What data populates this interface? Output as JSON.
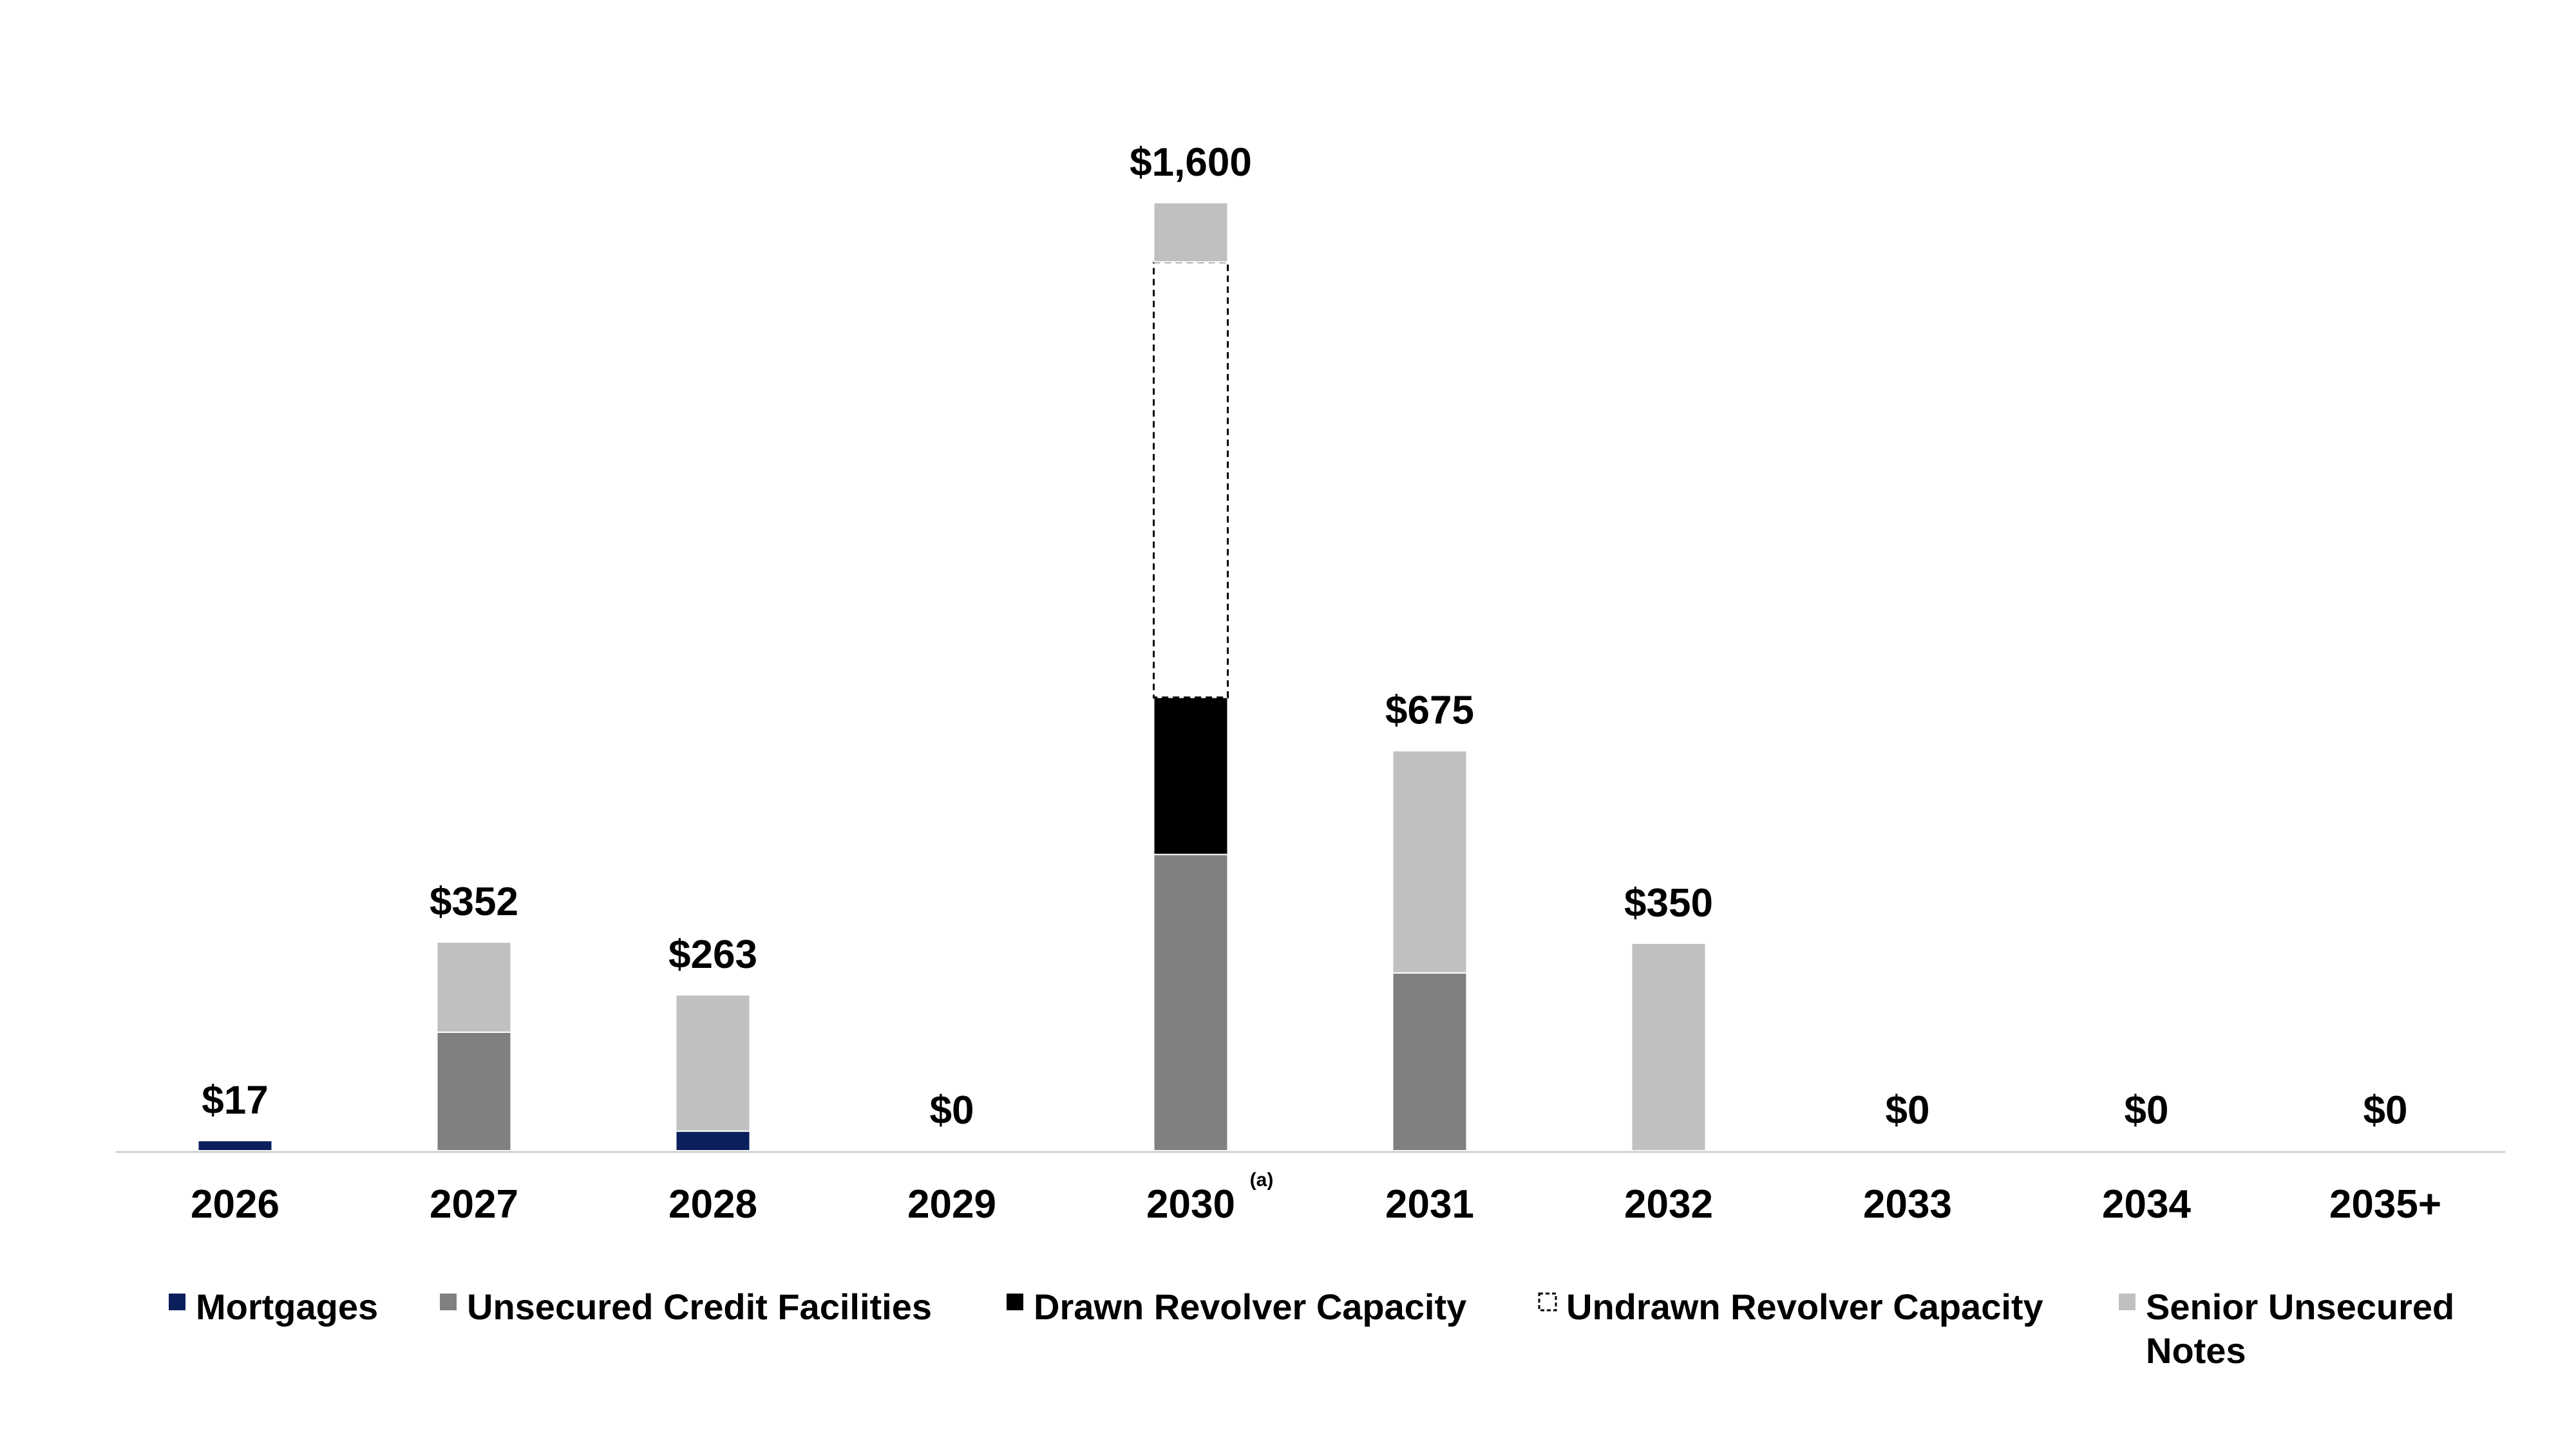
{
  "chart_data": {
    "type": "bar",
    "stacked": true,
    "title": "",
    "xlabel": "",
    "ylabel": "",
    "ylim": [
      0,
      1600
    ],
    "grid": false,
    "legend_position": "bottom",
    "categories": [
      "2026",
      "2027",
      "2028",
      "2029",
      "2030",
      "2031",
      "2032",
      "2033",
      "2034",
      "2035+"
    ],
    "category_notes": {
      "2030": "(a)"
    },
    "totals": [
      "$17",
      "$352",
      "$263",
      "$0",
      "$1,600",
      "$675",
      "$350",
      "$0",
      "$0",
      "$0"
    ],
    "series": [
      {
        "name": "Mortgages",
        "color": "#0b1f5c",
        "style": "solid",
        "values": [
          17,
          0,
          33,
          0,
          0,
          0,
          0,
          0,
          0,
          0
        ]
      },
      {
        "name": "Unsecured Credit Facilities",
        "color": "#808080",
        "style": "solid",
        "values": [
          0,
          200,
          0,
          0,
          500,
          300,
          0,
          0,
          0,
          0
        ]
      },
      {
        "name": "Drawn Revolver Capacity",
        "color": "#000000",
        "style": "solid",
        "values": [
          0,
          0,
          0,
          0,
          265,
          0,
          0,
          0,
          0,
          0
        ]
      },
      {
        "name": "Undrawn Revolver Capacity",
        "color": "#ffffff",
        "style": "dashed",
        "values": [
          0,
          0,
          0,
          0,
          735,
          0,
          0,
          0,
          0,
          0
        ]
      },
      {
        "name": "Senior Unsecured Notes",
        "color": "#c0c0c0",
        "style": "solid",
        "values": [
          0,
          152,
          230,
          0,
          100,
          375,
          350,
          0,
          0,
          0
        ]
      }
    ],
    "legend_lines": [
      [
        "Mortgages"
      ],
      [
        "Unsecured Credit Facilities"
      ],
      [
        "Drawn Revolver Capacity"
      ],
      [
        "Undrawn Revolver Capacity"
      ],
      [
        "Senior Unsecured",
        "Notes"
      ]
    ]
  }
}
